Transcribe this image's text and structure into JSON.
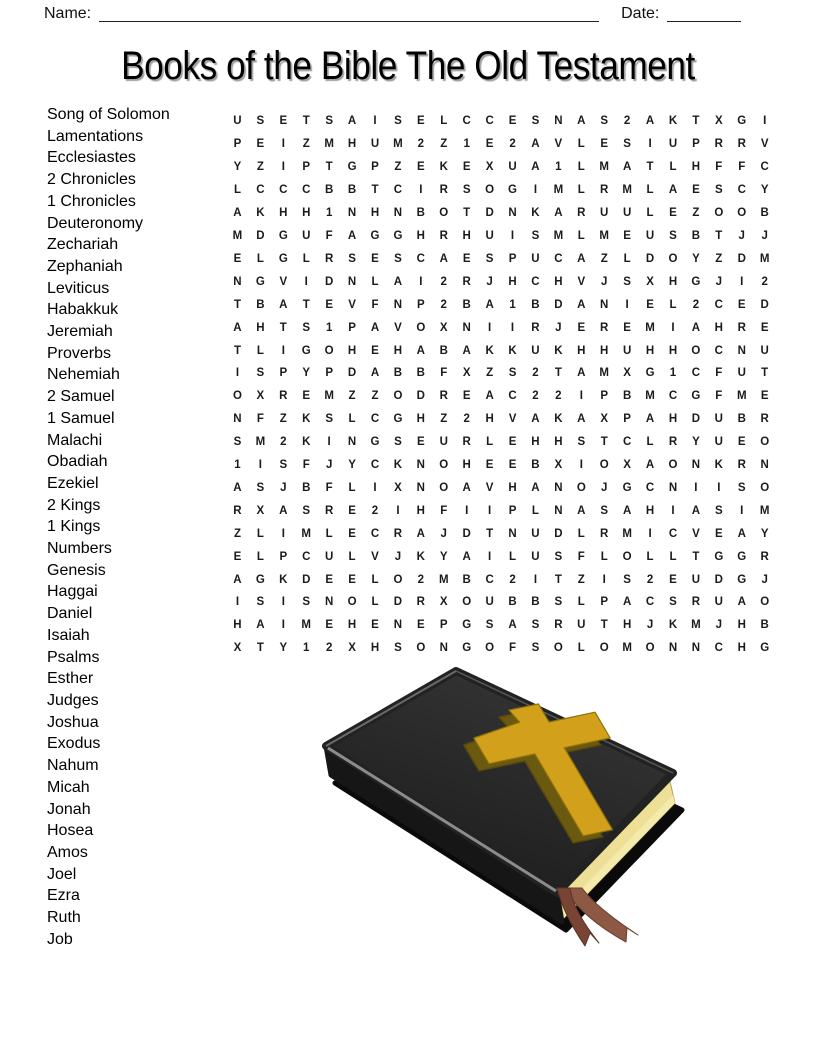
{
  "header": {
    "name_label": "Name:",
    "date_label": "Date:"
  },
  "title": "Books of the Bible The Old Testament",
  "word_list": [
    "Song of Solomon",
    "Lamentations",
    "Ecclesiastes",
    "2 Chronicles",
    "1 Chronicles",
    "Deuteronomy",
    "Zechariah",
    "Zephaniah",
    "Leviticus",
    "Habakkuk",
    "Jeremiah",
    "Proverbs",
    "Nehemiah",
    "2 Samuel",
    "1 Samuel",
    "Malachi",
    "Obadiah",
    "Ezekiel",
    "2 Kings",
    "1 Kings",
    "Numbers",
    "Genesis",
    "Haggai",
    "Daniel",
    "Isaiah",
    "Psalms",
    "Esther",
    "Judges",
    "Joshua",
    "Exodus",
    "Nahum",
    "Micah",
    "Jonah",
    "Hosea",
    "Amos",
    "Joel",
    "Ezra",
    "Ruth",
    "Job"
  ],
  "grid": {
    "rows": [
      "USETSAISELCCESNAS2AKTXGI",
      "PEIZMHUM2Z1E2AVLESIUPRRV",
      "YZIPTGPZEKEXUA1LMATLHFFC",
      "LCCCBBTCIRSOGIMLRMLAESCY",
      "AKHH1NHNBOTDNKARUULEZOOB",
      "MDGUFAGGHRHUISMLMEUSBTJJ",
      "ELGLRSESCAESPUCAZLDOYZDM",
      "NGVIDNLAI2RJHCHVJSXHGJI2",
      "TBATEVFNP2BA1BDANIEL2CED",
      "AHTS1PAVOXNIIRJEREMIAHRE",
      "TLIGOHEHABAKKUKHHUHHOCNU",
      "ISPYPDABBFXZS2TAMXG1CFUT",
      "OXREMZZODREAC22IPBMCGFME",
      "NFZKSLCGHZ2HVAKAXPAHDUBR",
      "SM2KINGSEURLEHHSTCLRYUEO",
      "1ISFJYCKNOHEEBXIOXAONKRN",
      "ASJBFLIXNOAVHANOJGCNIISO",
      "RXASRE2IHFIIPLNASAHIASIM",
      "ZLIMLECRAJDTNUDLRMICVEAY",
      "ELPCULVJKYAILUSFLOLLTGGR",
      "AGKDEELO2MBC2ITZIS2EUDGJ",
      "ISISNOLDRXOUBBSLPACSRUAO",
      "HAIMEHENEPGSASRUTHJKMJHB",
      "XTY12XHSONGOFSOLOMONNCHG"
    ]
  },
  "illustration": {
    "name": "bible-with-cross",
    "colors": {
      "back_cover": "#0a0a0a",
      "cover_side": "#161616",
      "cover_top_light": "#343434",
      "cover_top_dark": "#1c1c1c",
      "cover_stroke": "#222222",
      "edge_bevel": "#8c8c8c",
      "edge_top": "#6a6a6a",
      "edge_right": "#585858",
      "pages": "#EDE096",
      "pages_highlight": "#F4EAAC",
      "pages_edge": "#9e8f4e",
      "cross_gold": "#D2A01A",
      "cross_side": "#6b590f",
      "cross_outline": "#8a7208",
      "ribbon_dark": "#7A4434",
      "ribbon_light": "#8D5844",
      "ribbon_outline_dark": "#5C3325",
      "ribbon_outline_light": "#6B3E2D"
    }
  }
}
